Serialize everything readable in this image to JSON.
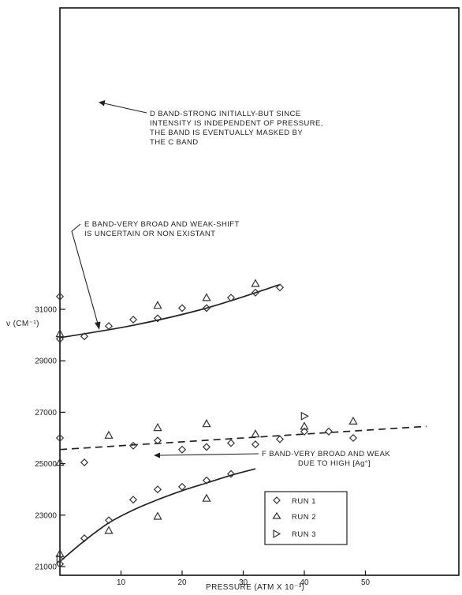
{
  "chart_data": {
    "type": "scatter",
    "title": "",
    "xlabel": "PRESSURE (ATM X 10⁻³)",
    "ylabel": "ν (CM⁻¹)",
    "xlim": [
      0,
      60
    ],
    "ylim": [
      21000,
      32000
    ],
    "x_ticks": [
      10,
      20,
      30,
      40,
      50
    ],
    "x_tick_labels": [
      "10",
      "20",
      "30",
      "40",
      "50"
    ],
    "y_ticks": [
      21000,
      23000,
      25000,
      27000,
      29000,
      31000
    ],
    "y_tick_labels": [
      "21000",
      "23000",
      "25000",
      "27000",
      "29000",
      "31000"
    ],
    "grid": false,
    "legend_position": "bottom-right",
    "series": [
      {
        "name": "RUN 1",
        "marker": "diamond",
        "points": [
          [
            0,
            31500
          ],
          [
            0,
            29850
          ],
          [
            4,
            29950
          ],
          [
            8,
            30350
          ],
          [
            12,
            30600
          ],
          [
            16,
            30650
          ],
          [
            20,
            31050
          ],
          [
            24,
            31050
          ],
          [
            28,
            31450
          ],
          [
            32,
            31650
          ],
          [
            36,
            31850
          ],
          [
            0,
            26000
          ],
          [
            12,
            25700
          ],
          [
            16,
            25900
          ],
          [
            20,
            25550
          ],
          [
            24,
            25650
          ],
          [
            28,
            25800
          ],
          [
            32,
            25750
          ],
          [
            36,
            25950
          ],
          [
            40,
            26250
          ],
          [
            44,
            26250
          ],
          [
            48,
            26000
          ],
          [
            4,
            25050
          ],
          [
            8,
            22800
          ],
          [
            12,
            23600
          ],
          [
            16,
            24000
          ],
          [
            20,
            24100
          ],
          [
            24,
            24350
          ],
          [
            28,
            24600
          ],
          [
            4,
            22100
          ],
          [
            0,
            21100
          ]
        ]
      },
      {
        "name": "RUN 2",
        "marker": "triangle-up",
        "points": [
          [
            0,
            30050
          ],
          [
            8,
            26100
          ],
          [
            16,
            26400
          ],
          [
            16,
            31150
          ],
          [
            24,
            31450
          ],
          [
            24,
            26550
          ],
          [
            32,
            26150
          ],
          [
            32,
            32000
          ],
          [
            40,
            26450
          ],
          [
            48,
            26650
          ],
          [
            0,
            25050
          ],
          [
            8,
            22400
          ],
          [
            16,
            22950
          ],
          [
            24,
            23650
          ],
          [
            0,
            21500
          ]
        ]
      },
      {
        "name": "RUN 3",
        "marker": "triangle-right",
        "points": [
          [
            40,
            26850
          ],
          [
            0,
            21300
          ]
        ]
      }
    ],
    "lines": [
      {
        "label": "D",
        "style": "solid",
        "points": [
          [
            0,
            29900
          ],
          [
            12,
            30380
          ],
          [
            24,
            31050
          ],
          [
            36,
            31960
          ]
        ]
      },
      {
        "label": "E",
        "style": "dashed",
        "points": [
          [
            0,
            25550
          ],
          [
            60,
            26450
          ]
        ]
      },
      {
        "label": "F",
        "style": "solid",
        "points": [
          [
            0,
            21200
          ],
          [
            4,
            22000
          ],
          [
            8,
            22700
          ],
          [
            12,
            23200
          ],
          [
            16,
            23600
          ],
          [
            20,
            23950
          ],
          [
            24,
            24250
          ],
          [
            28,
            24550
          ],
          [
            32,
            24800
          ]
        ]
      }
    ],
    "annotations": [
      {
        "id": "d",
        "lines": [
          "D BAND-STRONG INITIALLY-BUT SINCE",
          "INTENSITY IS INDEPENDENT OF PRESSURE,",
          "THE BAND IS EVENTUALLY MASKED BY",
          "THE C BAND"
        ]
      },
      {
        "id": "e",
        "lines": [
          "E BAND-VERY BROAD AND WEAK-SHIFT",
          "IS UNCERTAIN OR NON EXISTANT"
        ]
      },
      {
        "id": "f",
        "lines": [
          "F BAND-VERY BROAD AND WEAK",
          "DUE TO HIGH [Ag°]"
        ]
      }
    ]
  }
}
